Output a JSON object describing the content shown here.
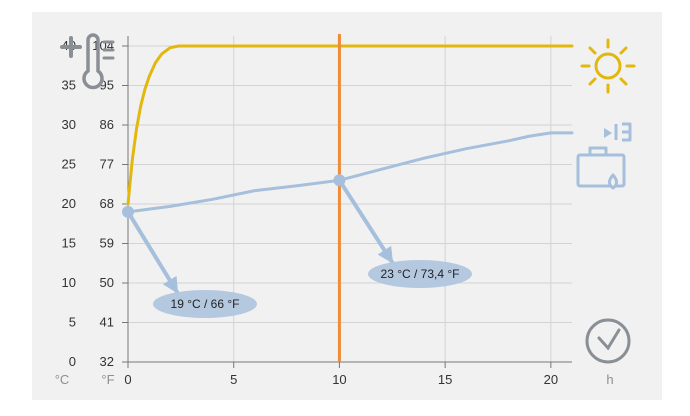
{
  "chart_data": {
    "type": "line",
    "x_unit": "h",
    "y_units": [
      "°C",
      "°F"
    ],
    "xlim": [
      0,
      21
    ],
    "ylim_c": [
      0,
      40
    ],
    "x_ticks": [
      "0",
      "5",
      "10",
      "15",
      "20"
    ],
    "y_ticks_c": [
      "0",
      "5",
      "10",
      "15",
      "20",
      "25",
      "30",
      "35",
      "40"
    ],
    "y_ticks_f": [
      "32",
      "41",
      "50",
      "59",
      "68",
      "77",
      "86",
      "95",
      "104"
    ],
    "grid": true,
    "series": [
      {
        "color": "#e2b80e",
        "x": [
          0,
          0.2,
          0.4,
          0.6,
          0.8,
          1.0,
          1.3,
          1.6,
          2.0,
          2.4,
          2.5,
          5,
          10,
          15,
          20,
          21
        ],
        "y": [
          20,
          25.5,
          29.5,
          32.4,
          34.5,
          36.1,
          37.9,
          39.0,
          39.8,
          40,
          40,
          40,
          40,
          40,
          40,
          40
        ]
      },
      {
        "color": "#a5bfdc",
        "x": [
          0,
          2,
          4,
          6,
          8,
          10,
          12,
          14,
          16,
          18,
          19,
          20,
          21
        ],
        "y": [
          19,
          19.7,
          20.6,
          21.7,
          22.3,
          23,
          24.4,
          25.8,
          27,
          28,
          28.6,
          29,
          29
        ]
      }
    ],
    "reference_line": {
      "x": 10,
      "color": "#ee8c3a"
    },
    "markers": [
      {
        "x": 0,
        "y": 19,
        "label": "19 °C / 66 °F"
      },
      {
        "x": 10,
        "y": 23,
        "label": "23 °C / 73,4 °F"
      }
    ],
    "icons": [
      "thermometer-plus-icon",
      "sun-icon",
      "heater-icon",
      "clock-icon"
    ]
  }
}
